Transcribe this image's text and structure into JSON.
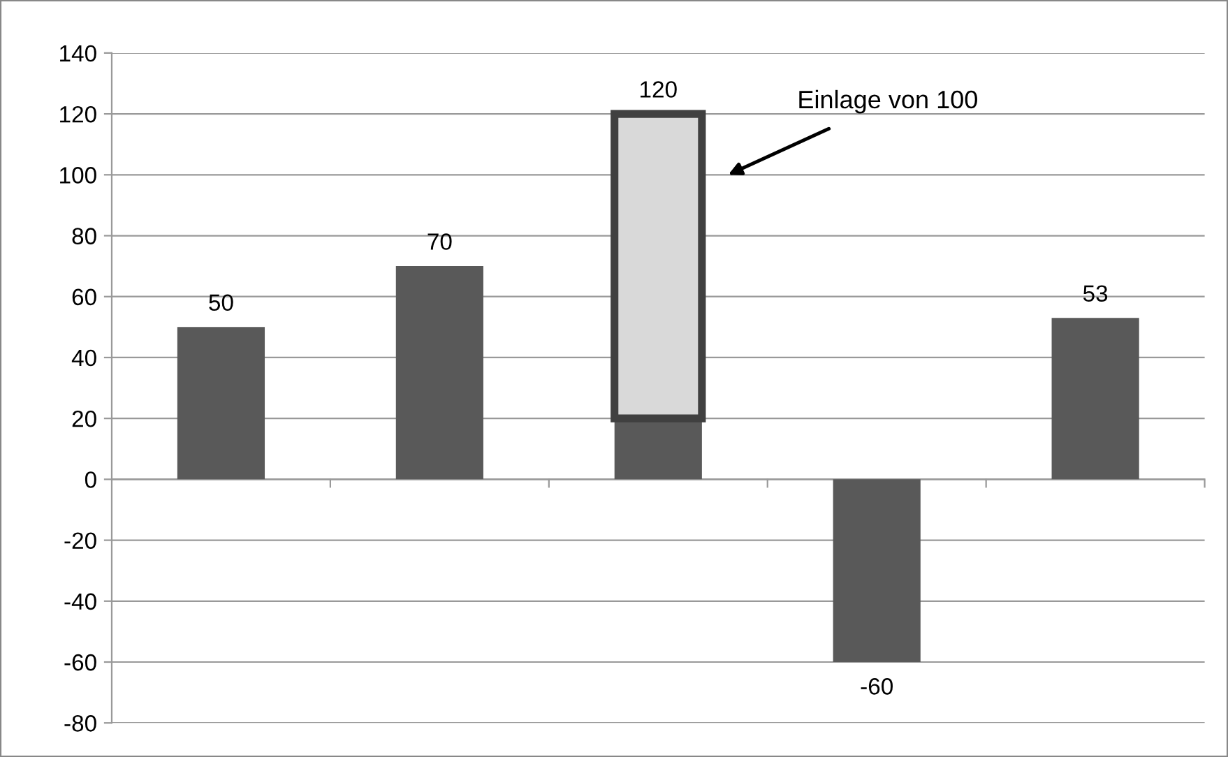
{
  "chart_data": {
    "type": "bar",
    "stacked": true,
    "categories": [
      null,
      null,
      null,
      null,
      null
    ],
    "series": [
      {
        "color": "#595959",
        "values": [
          50,
          70,
          20,
          -60,
          53
        ]
      },
      {
        "color": "#d9d9d9",
        "values": [
          null,
          null,
          100,
          null,
          null
        ]
      }
    ],
    "totals": [
      "50",
      "70",
      "120",
      "-60",
      "53"
    ],
    "ylim": [
      -80,
      140
    ],
    "yticks": [
      -80,
      -60,
      -40,
      -20,
      0,
      20,
      40,
      60,
      80,
      100,
      120,
      140
    ],
    "grid": "y",
    "legend": false,
    "annotations": [
      "Einlage von 100"
    ]
  }
}
